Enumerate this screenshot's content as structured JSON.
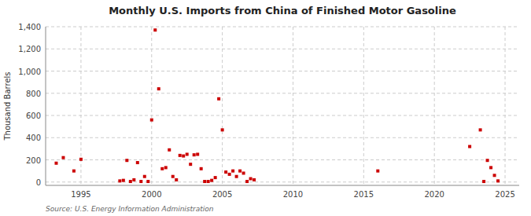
{
  "chart_data": {
    "type": "scatter",
    "title": "Monthly U.S. Imports from China of Finished Motor Gasoline",
    "ylabel": "Thousand Barrels",
    "source": "Source: U.S. Energy Information Administration",
    "color": "#cc0000",
    "marker": "square",
    "grid": true,
    "xlim": [
      1992.5,
      2026
    ],
    "ylim": [
      -30,
      1400
    ],
    "xticks": [
      1995,
      2000,
      2005,
      2010,
      2015,
      2020,
      2025
    ],
    "yticks": [
      0,
      200,
      400,
      600,
      800,
      {
        "value": 1000,
        "label": "1,000"
      },
      {
        "value": 1200,
        "label": "1,200"
      },
      {
        "value": 1400,
        "label": "1,400"
      }
    ],
    "x": [
      1993.25,
      1993.75,
      1994.5,
      1995.0,
      1997.75,
      1998.0,
      1998.25,
      1998.5,
      1998.75,
      1999.0,
      1999.25,
      1999.5,
      1999.75,
      2000.0,
      2000.25,
      2000.5,
      2000.75,
      2001.0,
      2001.25,
      2001.5,
      2001.75,
      2002.0,
      2002.25,
      2002.5,
      2002.75,
      2003.0,
      2003.25,
      2003.5,
      2003.75,
      2004.0,
      2004.25,
      2004.5,
      2004.75,
      2005.0,
      2005.25,
      2005.5,
      2005.75,
      2006.0,
      2006.25,
      2006.5,
      2006.75,
      2007.0,
      2007.25,
      2016.0,
      2022.5,
      2023.25,
      2023.5,
      2023.75,
      2024.0,
      2024.25,
      2024.5
    ],
    "values": [
      170,
      220,
      100,
      205,
      10,
      15,
      195,
      5,
      20,
      175,
      5,
      50,
      5,
      560,
      1370,
      840,
      120,
      130,
      290,
      50,
      20,
      240,
      235,
      250,
      160,
      245,
      250,
      120,
      5,
      5,
      15,
      40,
      750,
      470,
      90,
      70,
      100,
      50,
      100,
      80,
      5,
      30,
      20,
      100,
      320,
      470,
      5,
      195,
      130,
      60,
      10
    ]
  }
}
